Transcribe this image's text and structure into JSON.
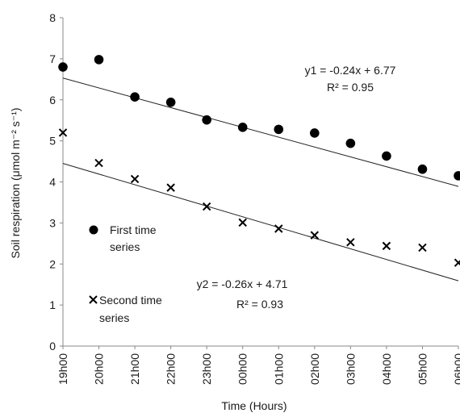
{
  "chart_data": {
    "type": "scatter",
    "x": [
      "19h00",
      "20h00",
      "21h00",
      "22h00",
      "23h00",
      "00h00",
      "01h00",
      "02h00",
      "03h00",
      "04h00",
      "05h00",
      "06h00"
    ],
    "series": [
      {
        "name": "First time series",
        "marker": "circle",
        "values": [
          6.8,
          6.98,
          6.07,
          5.94,
          5.51,
          5.33,
          5.28,
          5.19,
          4.94,
          4.63,
          4.31,
          4.15
        ],
        "trendline": {
          "equation": "y1 = -0.24x + 6.77",
          "r2": "R² = 0.95",
          "slope": -0.24,
          "intercept": 6.77
        }
      },
      {
        "name": "Second time series",
        "marker": "cross",
        "values": [
          5.2,
          4.46,
          4.07,
          3.86,
          3.4,
          3.01,
          2.86,
          2.7,
          2.53,
          2.44,
          2.4,
          2.03
        ],
        "trendline": {
          "equation": "y2 = -0.26x + 4.71",
          "r2": "R² = 0.93",
          "slope": -0.26,
          "intercept": 4.71
        }
      }
    ],
    "xlabel": "Time (Hours)",
    "ylabel": "Soil respiration (μmol m⁻² s⁻¹)",
    "ylim": [
      0,
      8
    ],
    "yticks": [
      "0",
      "1",
      "2",
      "3",
      "4",
      "5",
      "6",
      "7",
      "8"
    ],
    "grid": false,
    "legend": [
      {
        "marker": "circle",
        "line1": "First time",
        "line2": "series"
      },
      {
        "marker": "cross",
        "line1": "Second time",
        "line2": "series"
      }
    ]
  }
}
